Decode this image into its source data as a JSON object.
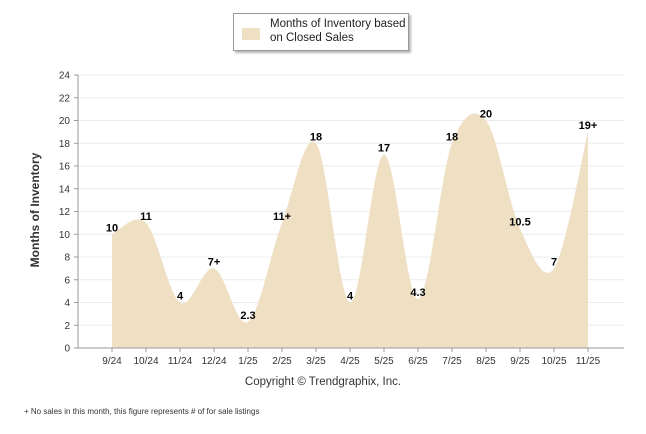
{
  "legend": {
    "label": "Months of Inventory based on Closed Sales",
    "color": "#efe0c4"
  },
  "copyright": "Copyright © Trendgraphix, Inc.",
  "footnote": "+  No sales in this month, this figure represents # of for sale listings",
  "chart_data": {
    "type": "area",
    "ylabel": "Months of Inventory",
    "xlabel": "",
    "ylim": [
      0,
      24
    ],
    "yticks": [
      0,
      2,
      4,
      6,
      8,
      10,
      12,
      14,
      16,
      18,
      20,
      22,
      24
    ],
    "grid": true,
    "legend_position": "top-center",
    "categories": [
      "9/24",
      "10/24",
      "11/24",
      "12/24",
      "1/25",
      "2/25",
      "3/25",
      "4/25",
      "5/25",
      "6/25",
      "7/25",
      "8/25",
      "9/25",
      "10/25",
      "11/25"
    ],
    "series": [
      {
        "name": "Months of Inventory based on Closed Sales",
        "values": [
          10,
          11,
          4,
          7,
          2.3,
          11,
          18,
          4,
          17,
          4.3,
          18,
          20,
          10.5,
          7,
          19
        ],
        "labels": [
          "10",
          "11",
          "4",
          "7+",
          "2.3",
          "11+",
          "18",
          "4",
          "17",
          "4.3",
          "18",
          "20",
          "10.5",
          "7",
          "19+"
        ]
      }
    ]
  }
}
